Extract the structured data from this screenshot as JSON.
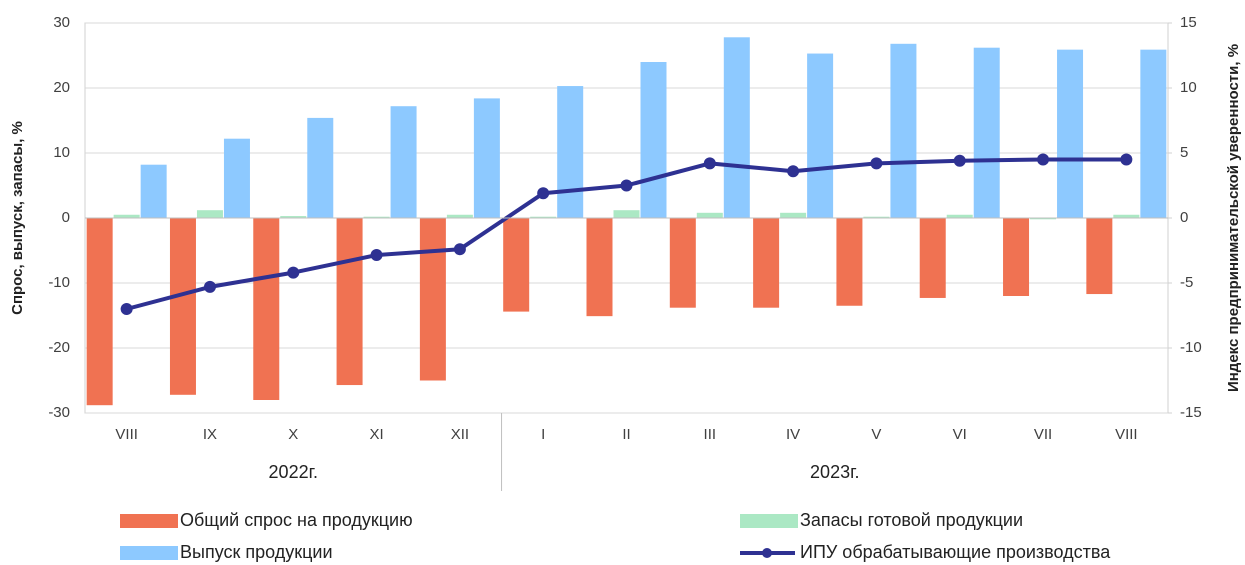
{
  "chart_data": {
    "type": "bar_line",
    "y_label": "Спрос, выпуск, запасы, %",
    "y2_label": "Индекс предпринимательской уверенности, %",
    "categories": [
      "VIII",
      "IX",
      "X",
      "XI",
      "XII",
      "I",
      "II",
      "III",
      "IV",
      "V",
      "VI",
      "VII",
      "VIII"
    ],
    "groups": [
      {
        "label": "2022г.",
        "count": 5
      },
      {
        "label": "2023г.",
        "count": 8
      }
    ],
    "ylim": [
      -30,
      30
    ],
    "yticks": [
      -30,
      -20,
      -10,
      0,
      10,
      20,
      30
    ],
    "y2lim": [
      -15,
      15
    ],
    "y2ticks": [
      -15,
      -10,
      -5,
      0,
      5,
      10,
      15
    ],
    "grid": true,
    "legend": "bottom",
    "series": [
      {
        "name": "Общий спрос на продукцию",
        "type": "bar",
        "color": "#f07252",
        "values": [
          -28.8,
          -27.2,
          -28,
          -25.7,
          -25,
          -14.4,
          -15.1,
          -13.8,
          -13.8,
          -13.5,
          -12.3,
          -12,
          -11.7
        ]
      },
      {
        "name": "Запасы готовой продукции",
        "type": "bar",
        "color": "#abe8c4",
        "values": [
          0.5,
          1.2,
          0.3,
          0.2,
          0.5,
          0.2,
          1.2,
          0.8,
          0.8,
          0.2,
          0.5,
          -0.2,
          0.5
        ]
      },
      {
        "name": "Выпуск продукции",
        "type": "bar",
        "color": "#8dc9ff",
        "values": [
          8.2,
          12.2,
          15.4,
          17.2,
          18.4,
          20.3,
          24,
          27.8,
          25.3,
          26.8,
          26.2,
          25.9,
          25.9
        ]
      },
      {
        "name": "ИПУ обрабатывающие производства",
        "type": "line",
        "axis": "y2",
        "color": "#2e3192",
        "values": [
          -7,
          -5.3,
          -4.2,
          -2.85,
          -2.4,
          1.9,
          2.5,
          4.2,
          3.6,
          4.2,
          4.4,
          4.5,
          4.5
        ]
      }
    ]
  }
}
